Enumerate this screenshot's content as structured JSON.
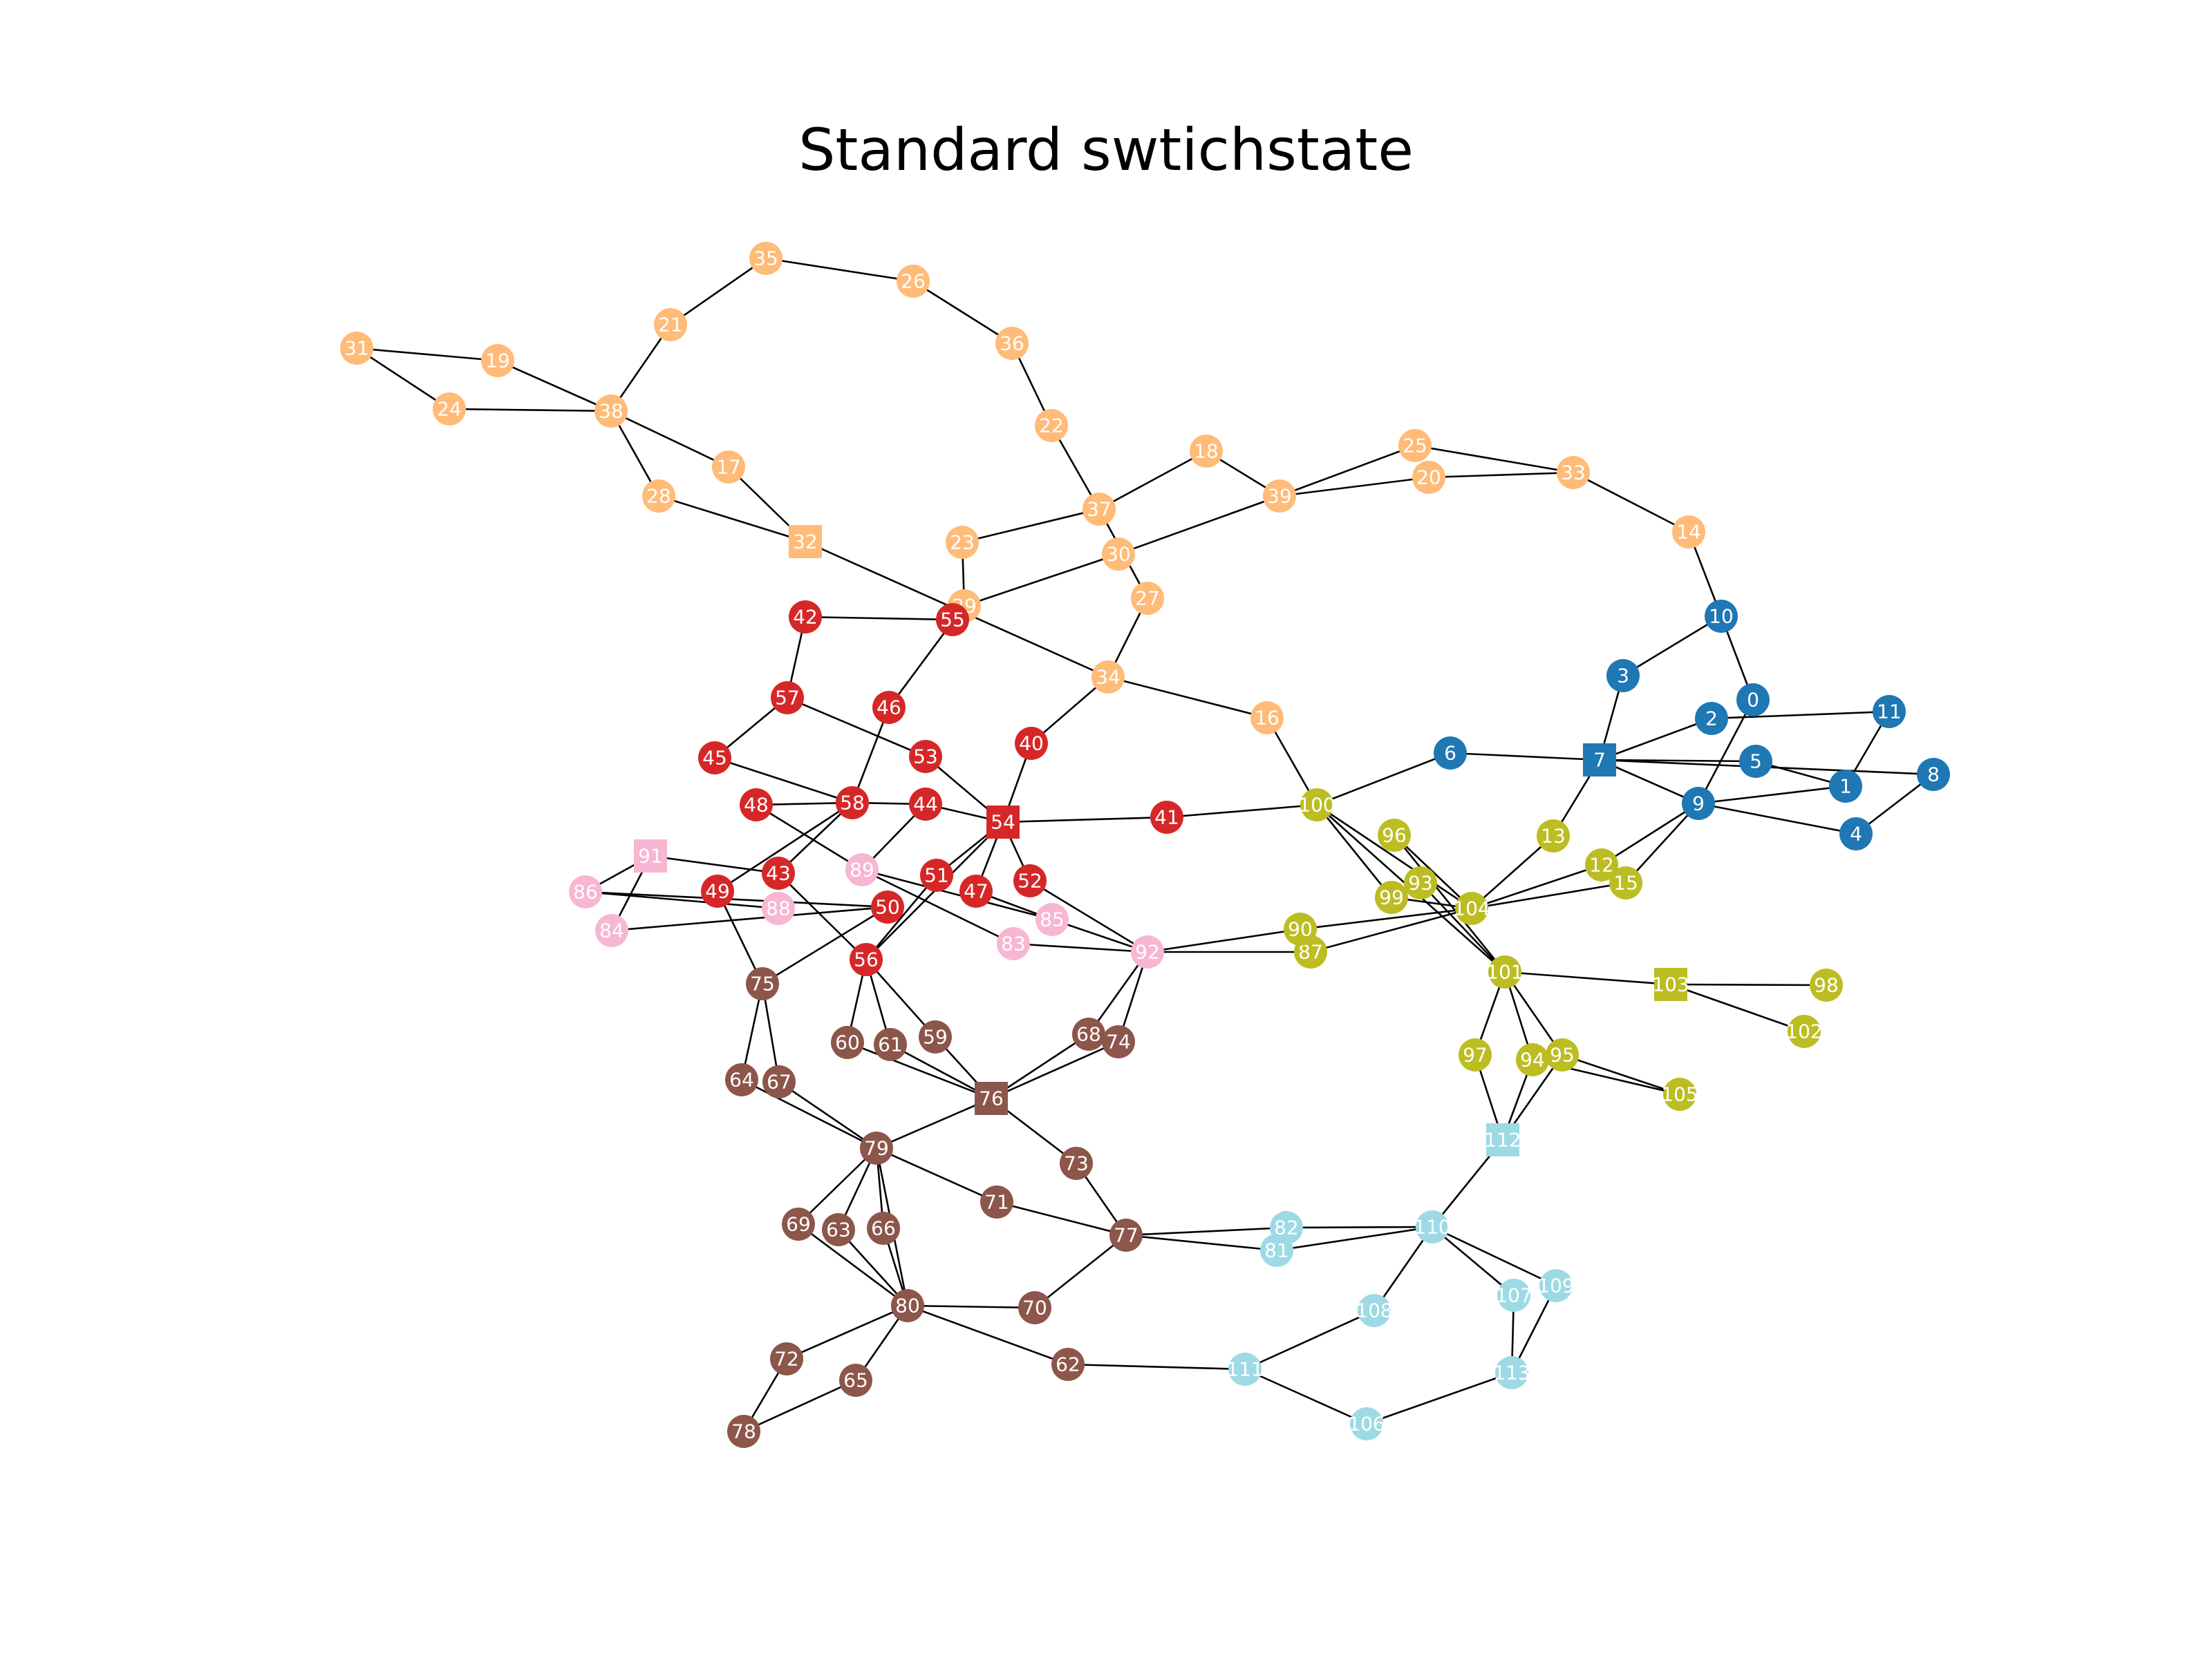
{
  "title": "Standard swtichstate",
  "colors": {
    "orange": "#ffbb78",
    "blue": "#1f77b4",
    "red": "#d62728",
    "pink": "#f7b6d2",
    "brown": "#8c564b",
    "olive": "#bcbd22",
    "cyan": "#9edae5"
  },
  "nodes": [
    {
      "id": "0",
      "c": "blue"
    },
    {
      "id": "1",
      "c": "blue"
    },
    {
      "id": "2",
      "c": "blue"
    },
    {
      "id": "3",
      "c": "blue"
    },
    {
      "id": "4",
      "c": "blue"
    },
    {
      "id": "5",
      "c": "blue"
    },
    {
      "id": "6",
      "c": "blue"
    },
    {
      "id": "7",
      "c": "blue",
      "shape": "square"
    },
    {
      "id": "8",
      "c": "blue"
    },
    {
      "id": "9",
      "c": "blue"
    },
    {
      "id": "10",
      "c": "blue"
    },
    {
      "id": "11",
      "c": "blue"
    },
    {
      "id": "12",
      "c": "olive"
    },
    {
      "id": "13",
      "c": "olive"
    },
    {
      "id": "14",
      "c": "orange"
    },
    {
      "id": "15",
      "c": "olive"
    },
    {
      "id": "16",
      "c": "orange"
    },
    {
      "id": "17",
      "c": "orange"
    },
    {
      "id": "18",
      "c": "orange"
    },
    {
      "id": "19",
      "c": "orange"
    },
    {
      "id": "20",
      "c": "orange"
    },
    {
      "id": "21",
      "c": "orange"
    },
    {
      "id": "22",
      "c": "orange"
    },
    {
      "id": "23",
      "c": "orange"
    },
    {
      "id": "24",
      "c": "orange"
    },
    {
      "id": "25",
      "c": "orange"
    },
    {
      "id": "26",
      "c": "orange"
    },
    {
      "id": "27",
      "c": "orange"
    },
    {
      "id": "28",
      "c": "orange"
    },
    {
      "id": "29",
      "c": "orange"
    },
    {
      "id": "30",
      "c": "orange"
    },
    {
      "id": "31",
      "c": "orange"
    },
    {
      "id": "32",
      "c": "orange",
      "shape": "square"
    },
    {
      "id": "33",
      "c": "orange"
    },
    {
      "id": "34",
      "c": "orange"
    },
    {
      "id": "35",
      "c": "orange"
    },
    {
      "id": "36",
      "c": "orange"
    },
    {
      "id": "37",
      "c": "orange"
    },
    {
      "id": "38",
      "c": "orange"
    },
    {
      "id": "39",
      "c": "orange"
    },
    {
      "id": "40",
      "c": "red"
    },
    {
      "id": "41",
      "c": "red"
    },
    {
      "id": "42",
      "c": "red"
    },
    {
      "id": "43",
      "c": "red"
    },
    {
      "id": "44",
      "c": "red"
    },
    {
      "id": "45",
      "c": "red"
    },
    {
      "id": "46",
      "c": "red"
    },
    {
      "id": "47",
      "c": "red"
    },
    {
      "id": "48",
      "c": "red"
    },
    {
      "id": "49",
      "c": "red"
    },
    {
      "id": "50",
      "c": "red"
    },
    {
      "id": "51",
      "c": "red"
    },
    {
      "id": "52",
      "c": "red"
    },
    {
      "id": "53",
      "c": "red"
    },
    {
      "id": "54",
      "c": "red",
      "shape": "square"
    },
    {
      "id": "55",
      "c": "red"
    },
    {
      "id": "56",
      "c": "red"
    },
    {
      "id": "57",
      "c": "red"
    },
    {
      "id": "58",
      "c": "red"
    },
    {
      "id": "59",
      "c": "brown"
    },
    {
      "id": "60",
      "c": "brown"
    },
    {
      "id": "61",
      "c": "brown"
    },
    {
      "id": "62",
      "c": "brown"
    },
    {
      "id": "63",
      "c": "brown"
    },
    {
      "id": "64",
      "c": "brown"
    },
    {
      "id": "65",
      "c": "brown"
    },
    {
      "id": "66",
      "c": "brown"
    },
    {
      "id": "67",
      "c": "brown"
    },
    {
      "id": "68",
      "c": "brown"
    },
    {
      "id": "69",
      "c": "brown"
    },
    {
      "id": "70",
      "c": "brown"
    },
    {
      "id": "71",
      "c": "brown"
    },
    {
      "id": "72",
      "c": "brown"
    },
    {
      "id": "73",
      "c": "brown"
    },
    {
      "id": "74",
      "c": "brown"
    },
    {
      "id": "75",
      "c": "brown"
    },
    {
      "id": "76",
      "c": "brown",
      "shape": "square"
    },
    {
      "id": "77",
      "c": "brown"
    },
    {
      "id": "78",
      "c": "brown"
    },
    {
      "id": "79",
      "c": "brown"
    },
    {
      "id": "80",
      "c": "brown"
    },
    {
      "id": "81",
      "c": "cyan"
    },
    {
      "id": "82",
      "c": "cyan"
    },
    {
      "id": "83",
      "c": "pink"
    },
    {
      "id": "84",
      "c": "pink"
    },
    {
      "id": "85",
      "c": "pink"
    },
    {
      "id": "86",
      "c": "pink"
    },
    {
      "id": "87",
      "c": "olive"
    },
    {
      "id": "88",
      "c": "pink"
    },
    {
      "id": "89",
      "c": "pink"
    },
    {
      "id": "90",
      "c": "olive"
    },
    {
      "id": "91",
      "c": "pink",
      "shape": "square"
    },
    {
      "id": "92",
      "c": "pink"
    },
    {
      "id": "93",
      "c": "olive"
    },
    {
      "id": "94",
      "c": "olive"
    },
    {
      "id": "95",
      "c": "olive"
    },
    {
      "id": "96",
      "c": "olive"
    },
    {
      "id": "97",
      "c": "olive"
    },
    {
      "id": "98",
      "c": "olive"
    },
    {
      "id": "99",
      "c": "olive"
    },
    {
      "id": "100",
      "c": "olive"
    },
    {
      "id": "101",
      "c": "olive"
    },
    {
      "id": "102",
      "c": "olive"
    },
    {
      "id": "103",
      "c": "olive",
      "shape": "square"
    },
    {
      "id": "104",
      "c": "olive"
    },
    {
      "id": "105",
      "c": "olive"
    },
    {
      "id": "106",
      "c": "cyan"
    },
    {
      "id": "107",
      "c": "cyan"
    },
    {
      "id": "108",
      "c": "cyan"
    },
    {
      "id": "109",
      "c": "cyan"
    },
    {
      "id": "110",
      "c": "cyan"
    },
    {
      "id": "111",
      "c": "cyan"
    },
    {
      "id": "112",
      "c": "cyan",
      "shape": "square"
    },
    {
      "id": "113",
      "c": "cyan"
    }
  ],
  "edges": [
    [
      "31",
      "19"
    ],
    [
      "31",
      "24"
    ],
    [
      "19",
      "38"
    ],
    [
      "24",
      "38"
    ],
    [
      "38",
      "21"
    ],
    [
      "21",
      "35"
    ],
    [
      "35",
      "26"
    ],
    [
      "26",
      "36"
    ],
    [
      "36",
      "22"
    ],
    [
      "22",
      "37"
    ],
    [
      "37",
      "18"
    ],
    [
      "37",
      "23"
    ],
    [
      "37",
      "27"
    ],
    [
      "18",
      "39"
    ],
    [
      "39",
      "25"
    ],
    [
      "39",
      "20"
    ],
    [
      "39",
      "30"
    ],
    [
      "25",
      "33"
    ],
    [
      "20",
      "33"
    ],
    [
      "33",
      "14"
    ],
    [
      "14",
      "10"
    ],
    [
      "10",
      "3"
    ],
    [
      "10",
      "0"
    ],
    [
      "38",
      "17"
    ],
    [
      "38",
      "28"
    ],
    [
      "17",
      "32"
    ],
    [
      "28",
      "32"
    ],
    [
      "32",
      "34"
    ],
    [
      "23",
      "29"
    ],
    [
      "30",
      "29"
    ],
    [
      "27",
      "34"
    ],
    [
      "34",
      "16"
    ],
    [
      "34",
      "40"
    ],
    [
      "16",
      "100"
    ],
    [
      "29",
      "46"
    ],
    [
      "42",
      "55"
    ],
    [
      "42",
      "57"
    ],
    [
      "57",
      "45"
    ],
    [
      "57",
      "53"
    ],
    [
      "45",
      "58"
    ],
    [
      "46",
      "58"
    ],
    [
      "53",
      "54"
    ],
    [
      "40",
      "54"
    ],
    [
      "58",
      "48"
    ],
    [
      "58",
      "44"
    ],
    [
      "58",
      "43"
    ],
    [
      "58",
      "49"
    ],
    [
      "48",
      "89"
    ],
    [
      "44",
      "54"
    ],
    [
      "44",
      "89"
    ],
    [
      "54",
      "41"
    ],
    [
      "54",
      "51"
    ],
    [
      "54",
      "47"
    ],
    [
      "54",
      "56"
    ],
    [
      "54",
      "52"
    ],
    [
      "41",
      "100"
    ],
    [
      "43",
      "56"
    ],
    [
      "43",
      "91"
    ],
    [
      "50",
      "75"
    ],
    [
      "50",
      "86"
    ],
    [
      "50",
      "84"
    ],
    [
      "51",
      "56"
    ],
    [
      "47",
      "85"
    ],
    [
      "52",
      "92"
    ],
    [
      "91",
      "86"
    ],
    [
      "91",
      "84"
    ],
    [
      "86",
      "88"
    ],
    [
      "89",
      "83"
    ],
    [
      "89",
      "85"
    ],
    [
      "83",
      "92"
    ],
    [
      "85",
      "92"
    ],
    [
      "92",
      "87"
    ],
    [
      "92",
      "90"
    ],
    [
      "92",
      "68"
    ],
    [
      "92",
      "74"
    ],
    [
      "49",
      "75"
    ],
    [
      "75",
      "67"
    ],
    [
      "75",
      "64"
    ],
    [
      "56",
      "60"
    ],
    [
      "56",
      "61"
    ],
    [
      "56",
      "59"
    ],
    [
      "59",
      "76"
    ],
    [
      "61",
      "76"
    ],
    [
      "60",
      "76"
    ],
    [
      "68",
      "76"
    ],
    [
      "74",
      "76"
    ],
    [
      "76",
      "79"
    ],
    [
      "76",
      "73"
    ],
    [
      "67",
      "79"
    ],
    [
      "64",
      "79"
    ],
    [
      "79",
      "69"
    ],
    [
      "79",
      "63"
    ],
    [
      "79",
      "66"
    ],
    [
      "79",
      "71"
    ],
    [
      "79",
      "80"
    ],
    [
      "69",
      "80"
    ],
    [
      "63",
      "80"
    ],
    [
      "66",
      "80"
    ],
    [
      "71",
      "77"
    ],
    [
      "73",
      "77"
    ],
    [
      "77",
      "70"
    ],
    [
      "77",
      "82"
    ],
    [
      "77",
      "81"
    ],
    [
      "70",
      "80"
    ],
    [
      "80",
      "72"
    ],
    [
      "80",
      "65"
    ],
    [
      "80",
      "62"
    ],
    [
      "72",
      "78"
    ],
    [
      "65",
      "78"
    ],
    [
      "62",
      "111"
    ],
    [
      "111",
      "108"
    ],
    [
      "111",
      "106"
    ],
    [
      "108",
      "110"
    ],
    [
      "106",
      "113"
    ],
    [
      "113",
      "107"
    ],
    [
      "113",
      "109"
    ],
    [
      "110",
      "107"
    ],
    [
      "110",
      "109"
    ],
    [
      "110",
      "82"
    ],
    [
      "110",
      "81"
    ],
    [
      "110",
      "112"
    ],
    [
      "112",
      "97"
    ],
    [
      "112",
      "94"
    ],
    [
      "112",
      "95"
    ],
    [
      "97",
      "101"
    ],
    [
      "94",
      "101"
    ],
    [
      "95",
      "101"
    ],
    [
      "95",
      "105"
    ],
    [
      "94",
      "105"
    ],
    [
      "101",
      "103"
    ],
    [
      "103",
      "98"
    ],
    [
      "103",
      "102"
    ],
    [
      "101",
      "96"
    ],
    [
      "101",
      "100"
    ],
    [
      "101",
      "93"
    ],
    [
      "100",
      "6"
    ],
    [
      "100",
      "99"
    ],
    [
      "100",
      "104"
    ],
    [
      "96",
      "104"
    ],
    [
      "93",
      "99"
    ],
    [
      "99",
      "104"
    ],
    [
      "90",
      "104"
    ],
    [
      "87",
      "104"
    ],
    [
      "104",
      "13"
    ],
    [
      "104",
      "12"
    ],
    [
      "104",
      "15"
    ],
    [
      "13",
      "7"
    ],
    [
      "12",
      "9"
    ],
    [
      "15",
      "9"
    ],
    [
      "6",
      "7"
    ],
    [
      "7",
      "3"
    ],
    [
      "7",
      "2"
    ],
    [
      "7",
      "5"
    ],
    [
      "7",
      "8"
    ],
    [
      "7",
      "9"
    ],
    [
      "2",
      "11"
    ],
    [
      "11",
      "1"
    ],
    [
      "0",
      "9"
    ],
    [
      "9",
      "1"
    ],
    [
      "9",
      "4"
    ],
    [
      "8",
      "4"
    ],
    [
      "5",
      "1"
    ]
  ]
}
